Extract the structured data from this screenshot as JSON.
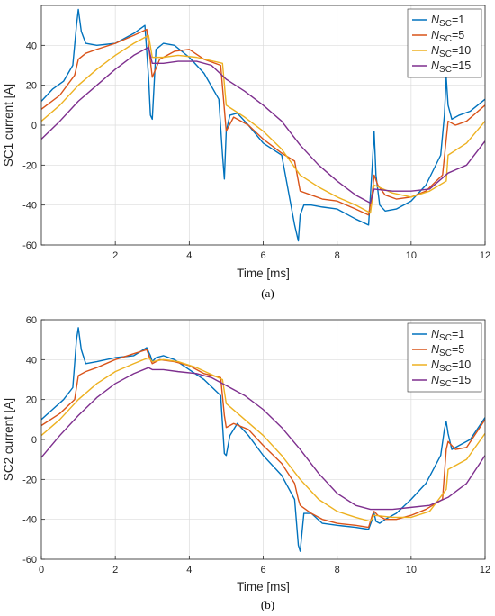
{
  "chart_data": [
    {
      "type": "line",
      "caption": "(a)",
      "xlabel": "Time [ms]",
      "ylabel": "SC1 current [A]",
      "xlim": [
        0,
        12
      ],
      "ylim": [
        -60,
        60
      ],
      "xticks": [
        2,
        4,
        6,
        8,
        10,
        12
      ],
      "yticks": [
        -60,
        -40,
        -20,
        0,
        20,
        40
      ],
      "grid": true,
      "legend_position": "top-right",
      "series": [
        {
          "name": "N_SC=1",
          "legend_main": "N",
          "legend_sub": "SC",
          "legend_rest": "=1",
          "color": "#0072BD",
          "x": [
            0,
            0.3,
            0.6,
            0.85,
            0.95,
            1.0,
            1.08,
            1.2,
            1.5,
            2.0,
            2.5,
            2.8,
            2.9,
            2.95,
            3.0,
            3.1,
            3.3,
            3.6,
            4.0,
            4.4,
            4.8,
            4.9,
            4.95,
            5.0,
            5.1,
            5.3,
            5.6,
            6.0,
            6.5,
            6.85,
            6.95,
            7.0,
            7.1,
            7.3,
            7.6,
            8.0,
            8.5,
            8.85,
            8.95,
            9.0,
            9.05,
            9.15,
            9.3,
            9.6,
            10.0,
            10.4,
            10.8,
            10.9,
            10.95,
            11.0,
            11.1,
            11.3,
            11.6,
            12.0
          ],
          "y": [
            12,
            18,
            22,
            30,
            50,
            58,
            47,
            41,
            40,
            41,
            46,
            50,
            24,
            5,
            3,
            38,
            41,
            40,
            34,
            26,
            13,
            -15,
            -27,
            -3,
            5,
            6,
            0,
            -9,
            -15,
            -50,
            -58,
            -45,
            -40,
            -40,
            -41,
            -42,
            -47,
            -50,
            -20,
            -3,
            -25,
            -40,
            -43,
            -42,
            -38,
            -30,
            -15,
            5,
            24,
            10,
            3,
            5,
            7,
            13
          ]
        },
        {
          "name": "N_SC=5",
          "legend_main": "N",
          "legend_sub": "SC",
          "legend_rest": "=5",
          "color": "#D95319",
          "x": [
            0,
            0.5,
            0.9,
            1.0,
            1.2,
            1.5,
            2.0,
            2.5,
            2.85,
            2.95,
            3.0,
            3.2,
            3.6,
            4.0,
            4.4,
            4.85,
            4.95,
            5.0,
            5.2,
            5.6,
            6.0,
            6.5,
            6.85,
            6.95,
            7.0,
            7.3,
            7.6,
            8.0,
            8.5,
            8.85,
            8.95,
            9.0,
            9.1,
            9.3,
            9.6,
            10.0,
            10.4,
            10.85,
            10.95,
            11.0,
            11.2,
            11.5,
            12.0
          ],
          "y": [
            8,
            15,
            25,
            33,
            36,
            38,
            41,
            45,
            48,
            32,
            24,
            33,
            37,
            38,
            33,
            30,
            8,
            -3,
            4,
            0,
            -7,
            -14,
            -18,
            -28,
            -33,
            -35,
            -37,
            -38,
            -42,
            -45,
            -34,
            -25,
            -30,
            -35,
            -37,
            -36,
            -33,
            -25,
            -7,
            2,
            0,
            2,
            10
          ]
        },
        {
          "name": "N_SC=10",
          "legend_main": "N",
          "legend_sub": "SC",
          "legend_rest": "=10",
          "color": "#EDB120",
          "x": [
            0,
            0.5,
            1.0,
            1.5,
            2.0,
            2.5,
            2.9,
            3.0,
            3.3,
            3.7,
            4.2,
            4.9,
            5.0,
            5.5,
            6.0,
            6.5,
            7.0,
            7.5,
            8.0,
            8.5,
            8.9,
            9.0,
            9.5,
            10.0,
            10.5,
            10.95,
            11.0,
            11.5,
            12.0
          ],
          "y": [
            2,
            10,
            20,
            28,
            35,
            41,
            45,
            34,
            34,
            35,
            34,
            31,
            10,
            4,
            -3,
            -12,
            -25,
            -31,
            -36,
            -40,
            -44,
            -30,
            -34,
            -36,
            -33,
            -28,
            -15,
            -9,
            2
          ]
        },
        {
          "name": "N_SC=15",
          "legend_main": "N",
          "legend_sub": "SC",
          "legend_rest": "=15",
          "color": "#7E2F8E",
          "x": [
            0,
            0.5,
            1.0,
            1.5,
            2.0,
            2.5,
            2.9,
            3.0,
            3.3,
            3.7,
            4.2,
            4.6,
            5.0,
            5.5,
            6.0,
            6.5,
            7.0,
            7.5,
            8.0,
            8.5,
            8.9,
            9.0,
            9.5,
            10.0,
            10.5,
            11.0,
            11.5,
            12.0
          ],
          "y": [
            -7,
            2,
            12,
            20,
            28,
            35,
            39,
            31,
            31,
            32,
            32,
            30,
            23,
            17,
            10,
            2,
            -10,
            -20,
            -28,
            -35,
            -39,
            -32,
            -33,
            -33,
            -32,
            -24,
            -20,
            -8
          ]
        }
      ]
    },
    {
      "type": "line",
      "caption": "(b)",
      "xlabel": "Time [ms]",
      "ylabel": "SC2 current [A]",
      "xlim": [
        0,
        12
      ],
      "ylim": [
        -60,
        60
      ],
      "xticks": [
        0,
        2,
        4,
        6,
        8,
        10,
        12
      ],
      "yticks": [
        -60,
        -40,
        -20,
        0,
        20,
        40,
        60
      ],
      "grid": true,
      "legend_position": "top-right",
      "series": [
        {
          "name": "N_SC=1",
          "legend_main": "N",
          "legend_sub": "SC",
          "legend_rest": "=1",
          "color": "#0072BD",
          "x": [
            0,
            0.3,
            0.6,
            0.85,
            0.95,
            1.0,
            1.08,
            1.2,
            1.5,
            2.0,
            2.5,
            2.85,
            2.95,
            3.0,
            3.1,
            3.3,
            3.6,
            4.0,
            4.4,
            4.85,
            4.95,
            5.0,
            5.1,
            5.3,
            5.6,
            6.0,
            6.5,
            6.85,
            6.95,
            7.0,
            7.1,
            7.3,
            7.6,
            8.0,
            8.5,
            8.85,
            8.95,
            9.0,
            9.05,
            9.15,
            9.3,
            9.6,
            10.0,
            10.4,
            10.8,
            10.9,
            10.95,
            11.0,
            11.1,
            11.3,
            11.6,
            12.0
          ],
          "y": [
            10,
            15,
            20,
            26,
            50,
            56,
            45,
            38,
            39,
            41,
            42,
            46,
            42,
            39,
            41,
            42,
            40,
            35,
            30,
            22,
            -7,
            -8,
            2,
            8,
            2,
            -8,
            -18,
            -30,
            -53,
            -56,
            -37,
            -37,
            -42,
            -43,
            -44,
            -45,
            -40,
            -37,
            -41,
            -42,
            -40,
            -37,
            -30,
            -22,
            -8,
            5,
            9,
            3,
            -5,
            -3,
            0,
            11
          ]
        },
        {
          "name": "N_SC=5",
          "legend_main": "N",
          "legend_sub": "SC",
          "legend_rest": "=5",
          "color": "#D95319",
          "x": [
            0,
            0.5,
            0.9,
            1.0,
            1.2,
            1.5,
            2.0,
            2.5,
            2.85,
            2.95,
            3.0,
            3.2,
            3.6,
            4.0,
            4.4,
            4.85,
            4.95,
            5.0,
            5.2,
            5.6,
            6.0,
            6.5,
            6.85,
            6.95,
            7.0,
            7.3,
            7.6,
            8.0,
            8.5,
            8.85,
            8.95,
            9.0,
            9.1,
            9.3,
            9.6,
            10.0,
            10.4,
            10.85,
            10.95,
            11.0,
            11.2,
            11.5,
            12.0
          ],
          "y": [
            7,
            13,
            20,
            32,
            34,
            36,
            40,
            43,
            45,
            40,
            38,
            40,
            39,
            37,
            33,
            31,
            12,
            6,
            8,
            5,
            -3,
            -12,
            -22,
            -30,
            -33,
            -37,
            -40,
            -42,
            -43,
            -44,
            -38,
            -36,
            -38,
            -40,
            -40,
            -38,
            -35,
            -30,
            -5,
            -1,
            -5,
            -4,
            10
          ]
        },
        {
          "name": "N_SC=10",
          "legend_main": "N",
          "legend_sub": "SC",
          "legend_rest": "=10",
          "color": "#EDB120",
          "x": [
            0,
            0.5,
            1.0,
            1.5,
            2.0,
            2.5,
            2.9,
            3.0,
            3.3,
            3.7,
            4.2,
            4.9,
            5.0,
            5.5,
            6.0,
            6.5,
            7.0,
            7.5,
            8.0,
            8.5,
            8.9,
            9.0,
            9.5,
            10.0,
            10.5,
            10.95,
            11.0,
            11.5,
            12.0
          ],
          "y": [
            2,
            10,
            20,
            28,
            34,
            38,
            41,
            39,
            40,
            39,
            36,
            30,
            18,
            10,
            2,
            -8,
            -20,
            -30,
            -36,
            -39,
            -41,
            -38,
            -39,
            -39,
            -36,
            -25,
            -15,
            -10,
            3
          ]
        },
        {
          "name": "N_SC=15",
          "legend_main": "N",
          "legend_sub": "SC",
          "legend_rest": "=15",
          "color": "#7E2F8E",
          "x": [
            0,
            0.5,
            1.0,
            1.5,
            2.0,
            2.5,
            2.9,
            3.0,
            3.3,
            3.7,
            4.2,
            4.6,
            5.0,
            5.5,
            6.0,
            6.5,
            7.0,
            7.5,
            8.0,
            8.5,
            8.9,
            9.0,
            9.5,
            10.0,
            10.5,
            11.0,
            11.5,
            12.0
          ],
          "y": [
            -9,
            2,
            12,
            21,
            28,
            33,
            36,
            35,
            35,
            34,
            33,
            31,
            27,
            22,
            15,
            6,
            -5,
            -17,
            -27,
            -33,
            -35,
            -35,
            -35,
            -34,
            -33,
            -29,
            -22,
            -8
          ]
        }
      ]
    }
  ]
}
